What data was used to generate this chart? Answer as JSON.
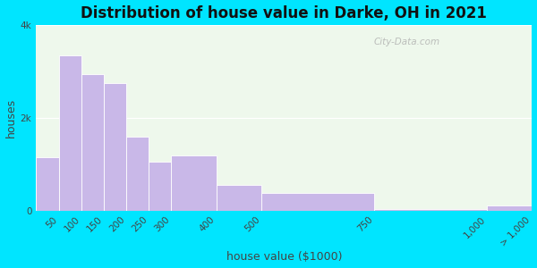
{
  "title": "Distribution of house value in Darke, OH in 2021",
  "xlabel": "house value ($1000)",
  "ylabel": "houses",
  "bar_edges": [
    0,
    50,
    100,
    150,
    200,
    250,
    300,
    400,
    500,
    750,
    1000,
    1100
  ],
  "bar_tick_positions": [
    50,
    100,
    150,
    200,
    250,
    300,
    400,
    500,
    750,
    1000,
    1100
  ],
  "bar_tick_labels": [
    "50",
    "100",
    "150",
    "200",
    "250",
    "300",
    "400",
    "500",
    "750",
    "1,000",
    "> 1,000"
  ],
  "bar_values": [
    1150,
    3350,
    2950,
    2750,
    1600,
    1050,
    1200,
    550,
    380,
    30,
    120
  ],
  "bar_color": "#c9b8e8",
  "bar_edge_color": "#ffffff",
  "background_outer": "#00e5ff",
  "background_inner": "#eef8ec",
  "title_fontsize": 12,
  "axis_label_fontsize": 9,
  "tick_fontsize": 7.5,
  "ylim": [
    0,
    4000
  ],
  "yticks": [
    0,
    2000,
    4000
  ],
  "ytick_labels": [
    "0",
    "2k",
    "4k"
  ],
  "watermark_text": "City-Data.com",
  "xlim": [
    0,
    1100
  ]
}
